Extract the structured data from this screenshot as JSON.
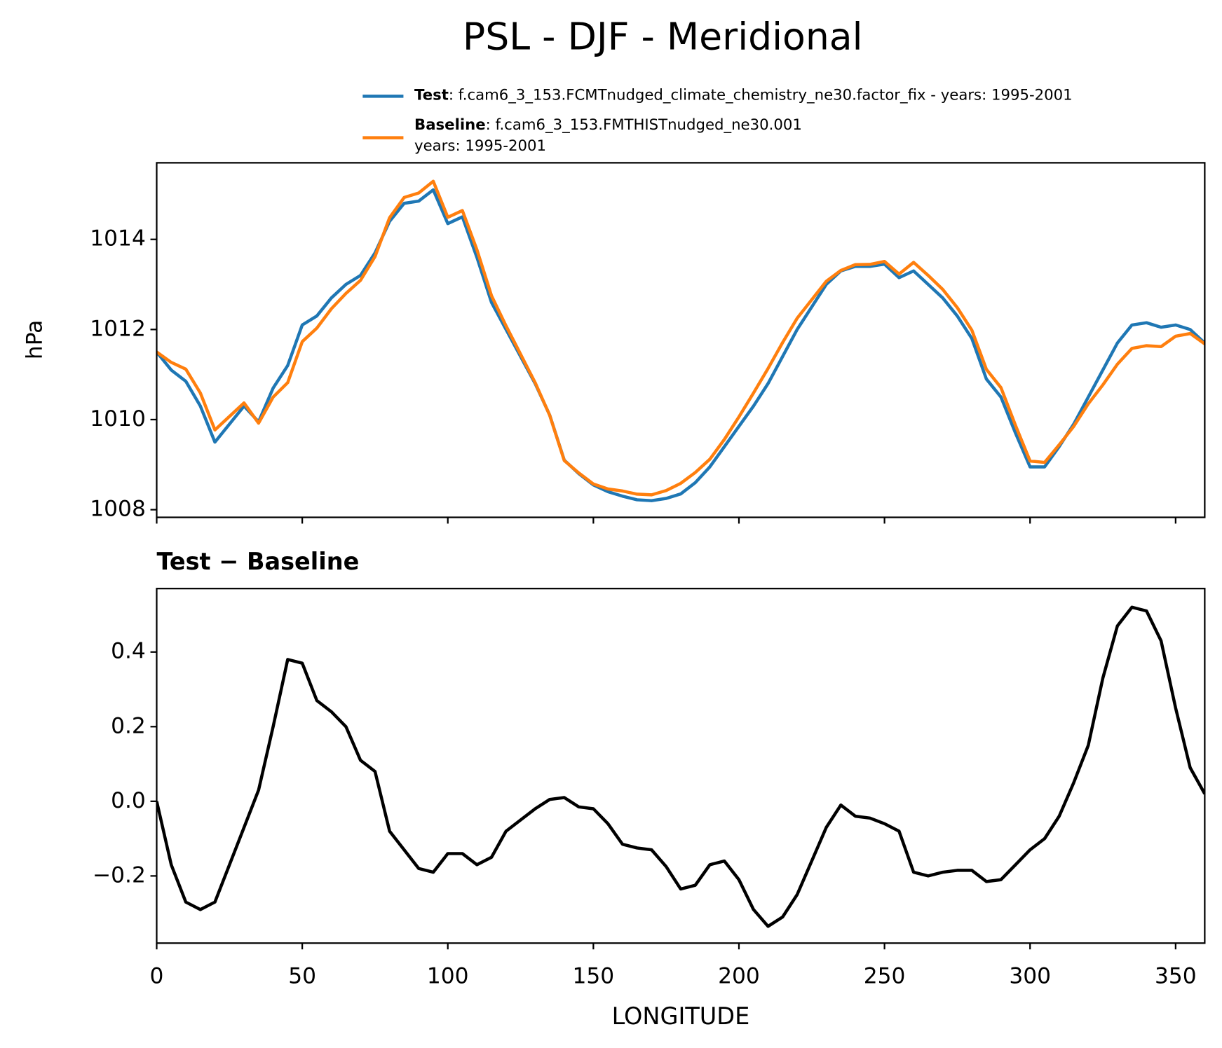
{
  "chart_data": [
    {
      "type": "line",
      "title": "PSL - DJF - Meridional",
      "ylabel": "hPa",
      "x": [
        0,
        5,
        10,
        15,
        20,
        25,
        30,
        35,
        40,
        45,
        50,
        55,
        60,
        65,
        70,
        75,
        80,
        85,
        90,
        95,
        100,
        105,
        110,
        115,
        120,
        125,
        130,
        135,
        140,
        145,
        150,
        155,
        160,
        165,
        170,
        175,
        180,
        185,
        190,
        195,
        200,
        205,
        210,
        215,
        220,
        225,
        230,
        235,
        240,
        245,
        250,
        255,
        260,
        265,
        270,
        275,
        280,
        285,
        290,
        295,
        300,
        305,
        310,
        315,
        320,
        325,
        330,
        335,
        340,
        345,
        350,
        355,
        360
      ],
      "series": [
        {
          "name": "Test",
          "description": ": f.cam6_3_153.FCMTnudged_climate_chemistry_ne30.factor_fix - years: 1995-2001",
          "color": "#1f77b4",
          "values": [
            1011.5,
            1011.1,
            1010.85,
            1010.3,
            1009.5,
            1009.9,
            1010.3,
            1009.95,
            1010.7,
            1011.2,
            1012.1,
            1012.3,
            1012.7,
            1013.0,
            1013.2,
            1013.7,
            1014.4,
            1014.8,
            1014.85,
            1015.1,
            1014.35,
            1014.5,
            1013.6,
            1012.6,
            1012.0,
            1011.4,
            1010.8,
            1010.1,
            1009.1,
            1008.8,
            1008.55,
            1008.4,
            1008.3,
            1008.22,
            1008.2,
            1008.25,
            1008.35,
            1008.6,
            1008.95,
            1009.4,
            1009.85,
            1010.3,
            1010.8,
            1011.4,
            1012.0,
            1012.5,
            1013.0,
            1013.3,
            1013.4,
            1013.4,
            1013.45,
            1013.15,
            1013.3,
            1013.0,
            1012.7,
            1012.3,
            1011.8,
            1010.9,
            1010.5,
            1009.7,
            1008.95,
            1008.95,
            1009.4,
            1009.9,
            1010.5,
            1011.1,
            1011.7,
            1012.1,
            1012.15,
            1012.05,
            1012.1,
            1012.0,
            1011.7
          ]
        },
        {
          "name": "Baseline",
          "description": ": f.cam6_3_153.FMTHISTnudged_ne30.001",
          "description2": "years: 1995-2001",
          "color": "#ff7f0e",
          "values": [
            1011.5,
            1011.27,
            1011.12,
            1010.59,
            1009.77,
            1010.07,
            1010.37,
            1009.92,
            1010.5,
            1010.82,
            1011.73,
            1012.03,
            1012.46,
            1012.8,
            1013.09,
            1013.62,
            1014.48,
            1014.93,
            1015.03,
            1015.29,
            1014.49,
            1014.64,
            1013.77,
            1012.75,
            1012.08,
            1011.45,
            1010.82,
            1010.095,
            1009.09,
            1008.815,
            1008.57,
            1008.46,
            1008.415,
            1008.345,
            1008.33,
            1008.425,
            1008.585,
            1008.825,
            1009.12,
            1009.56,
            1010.06,
            1010.59,
            1011.135,
            1011.71,
            1012.25,
            1012.66,
            1013.07,
            1013.31,
            1013.44,
            1013.445,
            1013.51,
            1013.23,
            1013.49,
            1013.2,
            1012.89,
            1012.485,
            1011.985,
            1011.115,
            1010.71,
            1009.87,
            1009.08,
            1009.05,
            1009.44,
            1009.85,
            1010.35,
            1010.77,
            1011.23,
            1011.58,
            1011.64,
            1011.62,
            1011.85,
            1011.91,
            1011.68
          ]
        }
      ],
      "xlim": [
        0,
        360
      ],
      "ylim": [
        1007.83,
        1015.7
      ],
      "yticks": [
        1008,
        1010,
        1012,
        1014
      ]
    },
    {
      "type": "line",
      "title": "Test − Baseline",
      "xlabel": "LONGITUDE",
      "x": [
        0,
        5,
        10,
        15,
        20,
        25,
        30,
        35,
        40,
        45,
        50,
        55,
        60,
        65,
        70,
        75,
        80,
        85,
        90,
        95,
        100,
        105,
        110,
        115,
        120,
        125,
        130,
        135,
        140,
        145,
        150,
        155,
        160,
        165,
        170,
        175,
        180,
        185,
        190,
        195,
        200,
        205,
        210,
        215,
        220,
        225,
        230,
        235,
        240,
        245,
        250,
        255,
        260,
        265,
        270,
        275,
        280,
        285,
        290,
        295,
        300,
        305,
        310,
        315,
        320,
        325,
        330,
        335,
        340,
        345,
        350,
        355,
        360
      ],
      "series": [
        {
          "color": "#000000",
          "values": [
            0.0,
            -0.17,
            -0.27,
            -0.29,
            -0.27,
            -0.17,
            -0.07,
            0.03,
            0.2,
            0.38,
            0.37,
            0.27,
            0.24,
            0.2,
            0.11,
            0.08,
            -0.08,
            -0.13,
            -0.18,
            -0.19,
            -0.14,
            -0.14,
            -0.17,
            -0.15,
            -0.08,
            -0.05,
            -0.02,
            0.005,
            0.01,
            -0.015,
            -0.02,
            -0.06,
            -0.115,
            -0.125,
            -0.13,
            -0.175,
            -0.235,
            -0.225,
            -0.17,
            -0.16,
            -0.21,
            -0.29,
            -0.335,
            -0.31,
            -0.25,
            -0.16,
            -0.07,
            -0.01,
            -0.04,
            -0.045,
            -0.06,
            -0.08,
            -0.19,
            -0.2,
            -0.19,
            -0.185,
            -0.185,
            -0.215,
            -0.21,
            -0.17,
            -0.13,
            -0.1,
            -0.04,
            0.05,
            0.15,
            0.33,
            0.47,
            0.52,
            0.51,
            0.43,
            0.25,
            0.09,
            0.02
          ]
        }
      ],
      "xlim": [
        0,
        360
      ],
      "ylim": [
        -0.38,
        0.57
      ],
      "xticks": [
        0,
        50,
        100,
        150,
        200,
        250,
        300,
        350
      ],
      "yticks": [
        {
          "value": -0.2,
          "label": "−0.2"
        },
        {
          "value": 0,
          "label": "0.0"
        },
        0.2,
        0.4
      ]
    }
  ]
}
